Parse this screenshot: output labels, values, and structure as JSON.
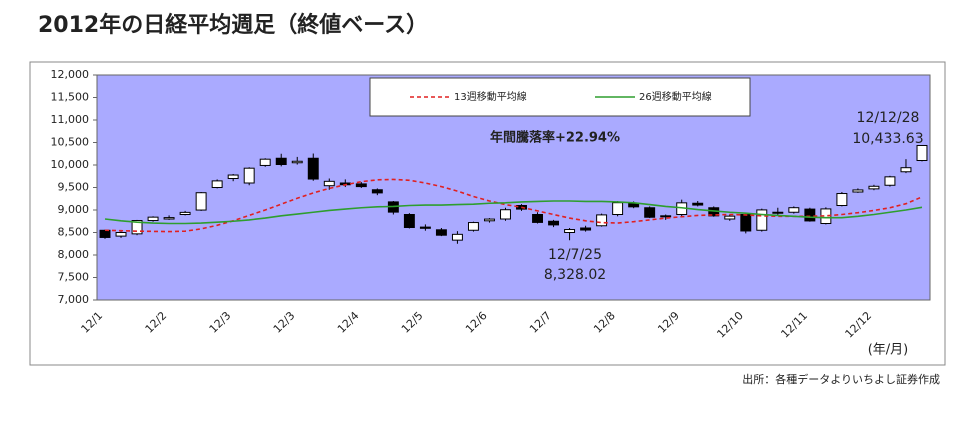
{
  "chart_data": {
    "type": "candlestick",
    "title": "2012年の日経平均週足（終値ベース）",
    "source": "出所：各種データよりいちよし証券作成",
    "x_unit_label": "(年/月)",
    "categories": [
      "12/1",
      null,
      null,
      null,
      "12/2",
      null,
      null,
      null,
      "12/3",
      null,
      null,
      null,
      "12/3",
      null,
      null,
      null,
      "12/4",
      null,
      null,
      null,
      "12/5",
      null,
      null,
      null,
      "12/6",
      null,
      null,
      null,
      "12/7",
      null,
      null,
      null,
      "12/8",
      null,
      null,
      null,
      "12/9",
      null,
      null,
      null,
      "12/10",
      null,
      null,
      null,
      "12/11",
      null,
      null,
      null,
      "12/12",
      null,
      null,
      null
    ],
    "open": [
      8549,
      8420,
      8470,
      8766,
      8800,
      8900,
      8999,
      9500,
      9700,
      9600,
      9990,
      10150,
      10050,
      10150,
      9540,
      9600,
      9580,
      9450,
      9180,
      8900,
      8620,
      8560,
      8330,
      8550,
      8760,
      8800,
      9100,
      8900,
      8750,
      8500,
      8600,
      8650,
      8900,
      9150,
      9050,
      8850,
      8900,
      9150,
      9050,
      8800,
      8900,
      8550,
      8950,
      8950,
      9020,
      8700,
      9100,
      9400,
      9470,
      9550,
      9850,
      10100
    ],
    "high": [
      8560,
      8520,
      8780,
      8860,
      8880,
      8980,
      9400,
      9680,
      9800,
      9950,
      10150,
      10250,
      10180,
      10255,
      9700,
      9680,
      9620,
      9480,
      9200,
      8930,
      8680,
      8600,
      8530,
      8740,
      8820,
      9050,
      9130,
      8950,
      8780,
      8600,
      8650,
      8920,
      9200,
      9190,
      9080,
      8900,
      9230,
      9200,
      9080,
      8900,
      8920,
      9030,
      9050,
      9080,
      9050,
      9060,
      9400,
      9480,
      9560,
      9760,
      10130,
      10440
    ],
    "low": [
      8360,
      8380,
      8440,
      8740,
      8780,
      8880,
      8980,
      9480,
      9640,
      9550,
      9960,
      9970,
      10010,
      9650,
      9450,
      9510,
      9490,
      9330,
      8900,
      8590,
      8540,
      8420,
      8250,
      8520,
      8720,
      8760,
      8980,
      8700,
      8620,
      8328,
      8520,
      8630,
      8860,
      9040,
      8820,
      8780,
      8860,
      9080,
      8850,
      8760,
      8480,
      8520,
      8880,
      8920,
      8740,
      8680,
      9080,
      9380,
      9440,
      9520,
      9820,
      10080
    ],
    "close": [
      8390,
      8500,
      8766,
      8841,
      8831,
      8947,
      9384,
      9647,
      9777,
      9929,
      10129,
      10011,
      10083,
      9688,
      9637,
      9561,
      9520,
      9380,
      8953,
      8611,
      8593,
      8440,
      8459,
      8721,
      8798,
      9006,
      9020,
      8724,
      8669,
      8566,
      8555,
      8891,
      9162,
      9070,
      8839,
      8871,
      9159,
      9110,
      8870,
      8863,
      8534,
      9002,
      8933,
      9051,
      8757,
      9024,
      9366,
      9446,
      9527,
      9737,
      9940,
      10433.63
    ],
    "series": [
      {
        "name": "13週移動平均線",
        "color": "#e02020",
        "dash": true,
        "values": [
          8550,
          8540,
          8530,
          8525,
          8520,
          8530,
          8580,
          8660,
          8760,
          8880,
          9000,
          9130,
          9260,
          9380,
          9480,
          9560,
          9630,
          9670,
          9680,
          9660,
          9600,
          9520,
          9420,
          9300,
          9200,
          9120,
          9060,
          8980,
          8900,
          8820,
          8760,
          8720,
          8710,
          8740,
          8780,
          8820,
          8850,
          8880,
          8890,
          8900,
          8890,
          8870,
          8860,
          8860,
          8860,
          8870,
          8900,
          8940,
          8990,
          9050,
          9140,
          9290
        ]
      },
      {
        "name": "26週移動平均線",
        "color": "#2e9e2e",
        "dash": false,
        "values": [
          8800,
          8760,
          8730,
          8710,
          8700,
          8700,
          8710,
          8730,
          8750,
          8780,
          8820,
          8870,
          8910,
          8950,
          8990,
          9020,
          9050,
          9070,
          9080,
          9100,
          9110,
          9110,
          9120,
          9130,
          9150,
          9160,
          9180,
          9190,
          9200,
          9200,
          9190,
          9190,
          9180,
          9160,
          9120,
          9080,
          9050,
          9010,
          8980,
          8950,
          8930,
          8900,
          8880,
          8860,
          8840,
          8830,
          8830,
          8860,
          8900,
          8950,
          9000,
          9060
        ]
      }
    ],
    "annotations": [
      "年間騰落率+22.94%",
      "12/12/28",
      "10,433.63",
      "12/7/25",
      "8,328.02"
    ],
    "ylim": [
      7000,
      12000
    ],
    "yticks": [
      {
        "value": 7000,
        "label": "7,000"
      },
      {
        "value": 7500,
        "label": "7,500"
      },
      {
        "value": 8000,
        "label": "8,000"
      },
      {
        "value": 8500,
        "label": "8,500"
      },
      {
        "value": 9000,
        "label": "9,000"
      },
      {
        "value": 9500,
        "label": "9,500"
      },
      {
        "value": 10000,
        "label": "10,000"
      },
      {
        "value": 10500,
        "label": "10,500"
      },
      {
        "value": 11000,
        "label": "11,000"
      },
      {
        "value": 11500,
        "label": "11,500"
      },
      {
        "value": 12000,
        "label": "12,000"
      }
    ],
    "plot_color": "#aaaaff"
  }
}
